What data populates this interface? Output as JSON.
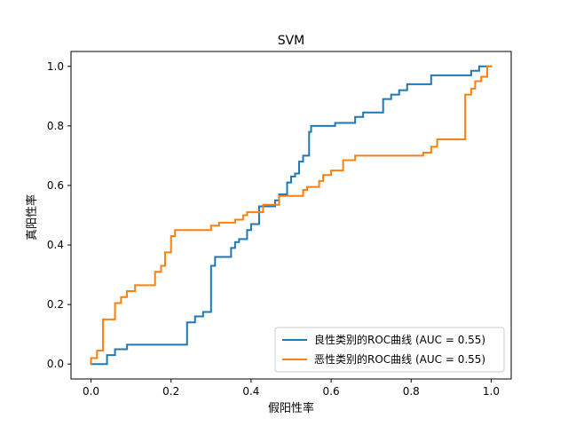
{
  "chart_data": {
    "type": "line",
    "title": "SVM",
    "xlabel": "假阳性率",
    "ylabel": "真阳性率",
    "xlim": [
      -0.05,
      1.05
    ],
    "ylim": [
      -0.05,
      1.05
    ],
    "xticks": [
      "0.0",
      "0.2",
      "0.4",
      "0.6",
      "0.8",
      "1.0"
    ],
    "yticks": [
      "0.0",
      "0.2",
      "0.4",
      "0.6",
      "0.8",
      "1.0"
    ],
    "grid": false,
    "legend": {
      "position": "lower-right"
    },
    "series": [
      {
        "name": "良性类别的ROC曲线 (AUC = 0.55)",
        "color": "#1f77b4",
        "points": [
          [
            0.0,
            0.0
          ],
          [
            0.04,
            0.0
          ],
          [
            0.04,
            0.03
          ],
          [
            0.06,
            0.03
          ],
          [
            0.06,
            0.05
          ],
          [
            0.09,
            0.05
          ],
          [
            0.09,
            0.065
          ],
          [
            0.24,
            0.065
          ],
          [
            0.24,
            0.14
          ],
          [
            0.26,
            0.14
          ],
          [
            0.26,
            0.16
          ],
          [
            0.28,
            0.16
          ],
          [
            0.28,
            0.175
          ],
          [
            0.3,
            0.175
          ],
          [
            0.3,
            0.33
          ],
          [
            0.31,
            0.33
          ],
          [
            0.31,
            0.36
          ],
          [
            0.35,
            0.36
          ],
          [
            0.35,
            0.39
          ],
          [
            0.36,
            0.39
          ],
          [
            0.36,
            0.41
          ],
          [
            0.37,
            0.41
          ],
          [
            0.37,
            0.42
          ],
          [
            0.39,
            0.42
          ],
          [
            0.39,
            0.45
          ],
          [
            0.4,
            0.45
          ],
          [
            0.4,
            0.47
          ],
          [
            0.42,
            0.47
          ],
          [
            0.42,
            0.53
          ],
          [
            0.46,
            0.53
          ],
          [
            0.46,
            0.55
          ],
          [
            0.47,
            0.55
          ],
          [
            0.47,
            0.57
          ],
          [
            0.49,
            0.57
          ],
          [
            0.49,
            0.61
          ],
          [
            0.5,
            0.61
          ],
          [
            0.5,
            0.63
          ],
          [
            0.51,
            0.63
          ],
          [
            0.51,
            0.64
          ],
          [
            0.52,
            0.64
          ],
          [
            0.52,
            0.68
          ],
          [
            0.53,
            0.68
          ],
          [
            0.53,
            0.7
          ],
          [
            0.545,
            0.7
          ],
          [
            0.545,
            0.78
          ],
          [
            0.55,
            0.78
          ],
          [
            0.55,
            0.8
          ],
          [
            0.61,
            0.8
          ],
          [
            0.61,
            0.81
          ],
          [
            0.66,
            0.81
          ],
          [
            0.66,
            0.83
          ],
          [
            0.68,
            0.83
          ],
          [
            0.68,
            0.845
          ],
          [
            0.73,
            0.845
          ],
          [
            0.73,
            0.89
          ],
          [
            0.75,
            0.89
          ],
          [
            0.75,
            0.905
          ],
          [
            0.77,
            0.905
          ],
          [
            0.77,
            0.92
          ],
          [
            0.79,
            0.92
          ],
          [
            0.79,
            0.94
          ],
          [
            0.85,
            0.94
          ],
          [
            0.85,
            0.97
          ],
          [
            0.95,
            0.97
          ],
          [
            0.95,
            0.985
          ],
          [
            0.97,
            0.985
          ],
          [
            0.97,
            1.0
          ],
          [
            1.0,
            1.0
          ]
        ]
      },
      {
        "name": "恶性类别的ROC曲线 (AUC = 0.55)",
        "color": "#ff7f0e",
        "points": [
          [
            0.0,
            0.0
          ],
          [
            0.0,
            0.02
          ],
          [
            0.015,
            0.02
          ],
          [
            0.015,
            0.045
          ],
          [
            0.03,
            0.045
          ],
          [
            0.03,
            0.15
          ],
          [
            0.06,
            0.15
          ],
          [
            0.06,
            0.205
          ],
          [
            0.075,
            0.205
          ],
          [
            0.075,
            0.225
          ],
          [
            0.09,
            0.225
          ],
          [
            0.09,
            0.245
          ],
          [
            0.11,
            0.245
          ],
          [
            0.11,
            0.265
          ],
          [
            0.16,
            0.265
          ],
          [
            0.16,
            0.31
          ],
          [
            0.175,
            0.31
          ],
          [
            0.175,
            0.33
          ],
          [
            0.185,
            0.33
          ],
          [
            0.185,
            0.375
          ],
          [
            0.2,
            0.375
          ],
          [
            0.2,
            0.43
          ],
          [
            0.21,
            0.43
          ],
          [
            0.21,
            0.45
          ],
          [
            0.3,
            0.45
          ],
          [
            0.3,
            0.465
          ],
          [
            0.32,
            0.465
          ],
          [
            0.32,
            0.475
          ],
          [
            0.36,
            0.475
          ],
          [
            0.36,
            0.485
          ],
          [
            0.38,
            0.485
          ],
          [
            0.38,
            0.5
          ],
          [
            0.39,
            0.5
          ],
          [
            0.39,
            0.51
          ],
          [
            0.43,
            0.51
          ],
          [
            0.43,
            0.535
          ],
          [
            0.47,
            0.535
          ],
          [
            0.47,
            0.565
          ],
          [
            0.53,
            0.565
          ],
          [
            0.53,
            0.585
          ],
          [
            0.54,
            0.585
          ],
          [
            0.54,
            0.595
          ],
          [
            0.57,
            0.595
          ],
          [
            0.57,
            0.615
          ],
          [
            0.58,
            0.615
          ],
          [
            0.58,
            0.635
          ],
          [
            0.6,
            0.635
          ],
          [
            0.6,
            0.65
          ],
          [
            0.63,
            0.65
          ],
          [
            0.63,
            0.685
          ],
          [
            0.66,
            0.685
          ],
          [
            0.66,
            0.7
          ],
          [
            0.83,
            0.7
          ],
          [
            0.83,
            0.71
          ],
          [
            0.85,
            0.71
          ],
          [
            0.85,
            0.73
          ],
          [
            0.865,
            0.73
          ],
          [
            0.865,
            0.755
          ],
          [
            0.935,
            0.755
          ],
          [
            0.935,
            0.905
          ],
          [
            0.95,
            0.905
          ],
          [
            0.95,
            0.925
          ],
          [
            0.96,
            0.925
          ],
          [
            0.96,
            0.95
          ],
          [
            0.975,
            0.95
          ],
          [
            0.975,
            0.965
          ],
          [
            0.99,
            0.965
          ],
          [
            0.99,
            1.0
          ],
          [
            1.0,
            1.0
          ]
        ]
      }
    ]
  }
}
